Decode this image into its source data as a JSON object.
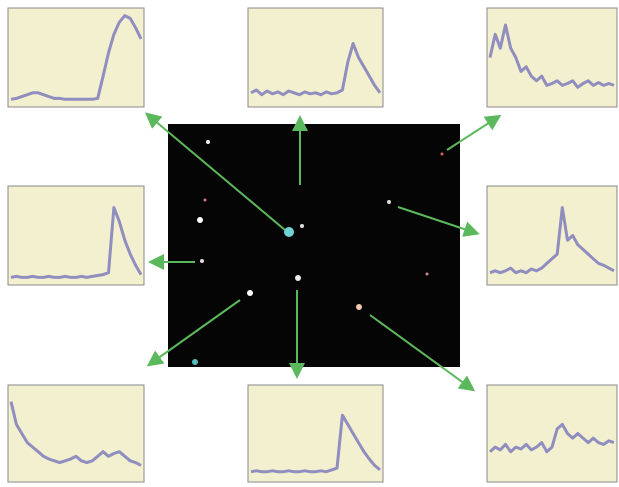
{
  "chart_data": [
    {
      "type": "line",
      "color": "#6e6eba",
      "ylim": [
        0,
        1
      ],
      "values": [
        0.05,
        0.06,
        0.08,
        0.1,
        0.12,
        0.12,
        0.1,
        0.08,
        0.06,
        0.06,
        0.05,
        0.05,
        0.05,
        0.05,
        0.05,
        0.05,
        0.06,
        0.3,
        0.55,
        0.75,
        0.88,
        0.95,
        0.92,
        0.82,
        0.7
      ]
    },
    {
      "type": "line",
      "color": "#6e6eba",
      "ylim": [
        0,
        1
      ],
      "values": [
        0.12,
        0.15,
        0.1,
        0.14,
        0.11,
        0.13,
        0.1,
        0.14,
        0.12,
        0.1,
        0.13,
        0.11,
        0.12,
        0.1,
        0.13,
        0.11,
        0.12,
        0.15,
        0.45,
        0.65,
        0.5,
        0.4,
        0.3,
        0.2,
        0.12
      ]
    },
    {
      "type": "line",
      "color": "#6e6eba",
      "ylim": [
        0,
        1
      ],
      "values": [
        0.5,
        0.75,
        0.6,
        0.85,
        0.6,
        0.5,
        0.35,
        0.4,
        0.3,
        0.25,
        0.3,
        0.2,
        0.22,
        0.25,
        0.2,
        0.22,
        0.25,
        0.18,
        0.22,
        0.25,
        0.2,
        0.23,
        0.2,
        0.22,
        0.2
      ]
    },
    {
      "type": "line",
      "color": "#6e6eba",
      "ylim": [
        0,
        1
      ],
      "values": [
        0.05,
        0.06,
        0.05,
        0.05,
        0.06,
        0.05,
        0.05,
        0.06,
        0.05,
        0.05,
        0.06,
        0.05,
        0.05,
        0.06,
        0.05,
        0.06,
        0.07,
        0.08,
        0.1,
        0.8,
        0.65,
        0.45,
        0.3,
        0.18,
        0.08
      ]
    },
    {
      "type": "line",
      "color": "#6e6eba",
      "ylim": [
        0,
        1
      ],
      "values": [
        0.1,
        0.12,
        0.1,
        0.12,
        0.15,
        0.1,
        0.12,
        0.1,
        0.14,
        0.12,
        0.15,
        0.2,
        0.25,
        0.3,
        0.8,
        0.45,
        0.5,
        0.4,
        0.35,
        0.3,
        0.25,
        0.2,
        0.18,
        0.15,
        0.12
      ]
    },
    {
      "type": "line",
      "color": "#6e6eba",
      "ylim": [
        0,
        1
      ],
      "values": [
        0.85,
        0.6,
        0.5,
        0.4,
        0.35,
        0.3,
        0.25,
        0.22,
        0.2,
        0.18,
        0.2,
        0.22,
        0.25,
        0.2,
        0.18,
        0.2,
        0.25,
        0.3,
        0.25,
        0.28,
        0.3,
        0.25,
        0.2,
        0.18,
        0.15
      ]
    },
    {
      "type": "line",
      "color": "#6e6eba",
      "ylim": [
        0,
        1
      ],
      "values": [
        0.08,
        0.09,
        0.08,
        0.08,
        0.09,
        0.08,
        0.08,
        0.09,
        0.08,
        0.08,
        0.09,
        0.08,
        0.08,
        0.09,
        0.08,
        0.1,
        0.12,
        0.7,
        0.6,
        0.5,
        0.4,
        0.3,
        0.22,
        0.15,
        0.1
      ]
    },
    {
      "type": "line",
      "color": "#6e6eba",
      "ylim": [
        0,
        1
      ],
      "values": [
        0.3,
        0.35,
        0.32,
        0.38,
        0.3,
        0.35,
        0.33,
        0.38,
        0.32,
        0.35,
        0.4,
        0.3,
        0.35,
        0.55,
        0.6,
        0.5,
        0.45,
        0.5,
        0.45,
        0.4,
        0.45,
        0.4,
        0.38,
        0.42,
        0.4
      ]
    }
  ]
}
